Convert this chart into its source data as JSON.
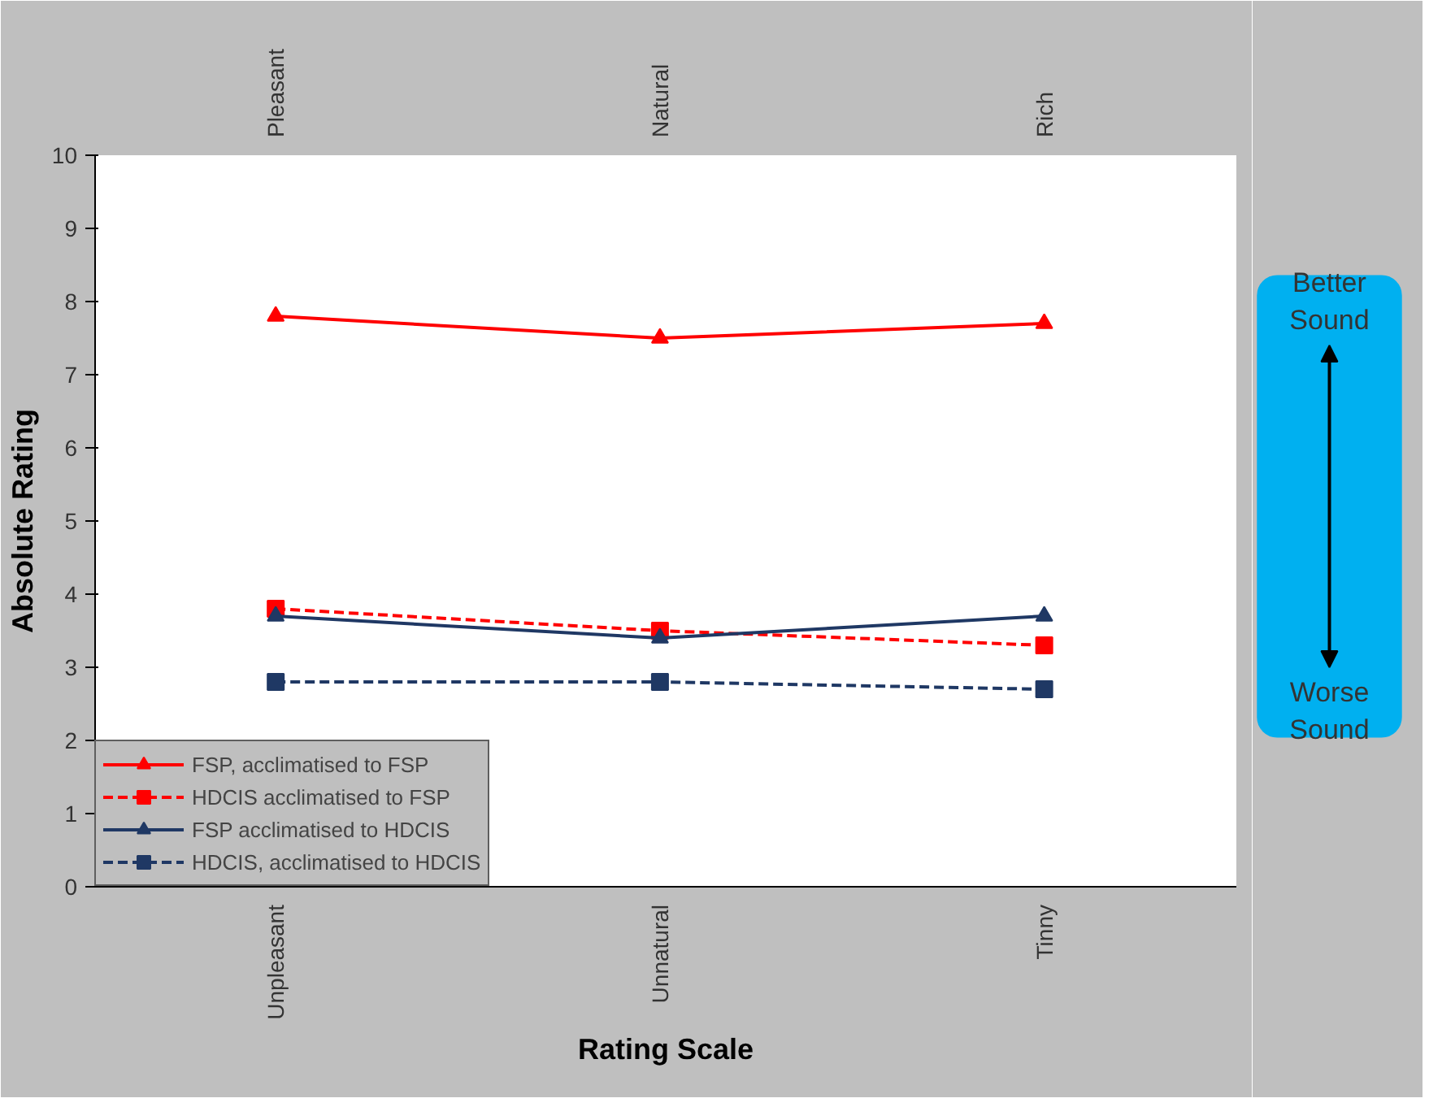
{
  "chart_data": {
    "type": "line",
    "xlabel": "Rating Scale",
    "ylabel": "Absolute Rating",
    "categories": [
      "Unpleasant",
      "Unnatural",
      "Tinny"
    ],
    "series": [
      {
        "name": "FSP, acclimatised to FSP",
        "color": "#ff0000",
        "values": [
          7.8,
          7.5,
          7.7
        ],
        "marker": "triangle",
        "line_style": "solid"
      },
      {
        "name": "HDCIS acclimatised to FSP",
        "color": "#ff0000",
        "values": [
          3.8,
          3.5,
          3.3
        ],
        "marker": "square",
        "line_style": "dashed"
      },
      {
        "name": "FSP acclimatised to HDCIS",
        "color": "#1f3864",
        "values": [
          3.7,
          3.4,
          3.7
        ],
        "marker": "triangle",
        "line_style": "solid"
      },
      {
        "name": "HDCIS, acclimatised to HDCIS",
        "color": "#1f3864",
        "values": [
          2.8,
          2.8,
          2.7
        ],
        "marker": "square",
        "line_style": "dashed"
      }
    ],
    "ylim": [
      0,
      10
    ],
    "yticks": [
      0,
      1,
      2,
      3,
      4,
      5,
      6,
      7,
      8,
      9,
      10
    ],
    "grid": false,
    "legend": "bottom left",
    "annotations": [
      "Pleasant",
      "Natural",
      "Rich",
      "Better Sound",
      "Worse Sound"
    ]
  }
}
